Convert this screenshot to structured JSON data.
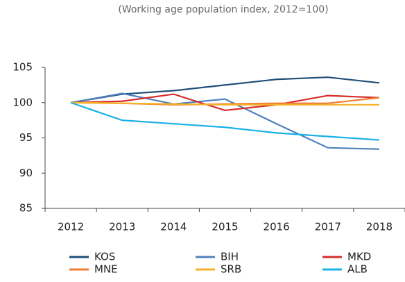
{
  "chart_data": {
    "type": "line",
    "subtitle": "(Working age population index, 2012=100)",
    "categories": [
      "2012",
      "2013",
      "2014",
      "2015",
      "2016",
      "2017",
      "2018"
    ],
    "series": [
      {
        "name": "KOS",
        "color": "#1f4e79",
        "values": [
          100,
          101.2,
          101.7,
          102.5,
          103.3,
          103.6,
          102.8
        ]
      },
      {
        "name": "BIH",
        "color": "#4f81bd",
        "values": [
          100,
          101.3,
          99.8,
          100.5,
          97,
          93.6,
          93.4
        ]
      },
      {
        "name": "MKD",
        "color": "#d62c2c",
        "values": [
          100,
          100.2,
          101.2,
          98.9,
          99.7,
          101,
          100.7
        ]
      },
      {
        "name": "MNE",
        "color": "#ef7d31",
        "values": [
          100,
          99.9,
          99.7,
          99.8,
          99.9,
          99.9,
          100.7
        ]
      },
      {
        "name": "SRB",
        "color": "#f5b025",
        "values": [
          100,
          99.9,
          99.8,
          99.7,
          99.7,
          99.7,
          99.7
        ]
      },
      {
        "name": "ALB",
        "color": "#1ab0e8",
        "values": [
          100,
          97.5,
          97,
          96.5,
          95.7,
          95.2,
          94.7
        ]
      }
    ],
    "ylim": [
      85,
      105
    ],
    "yticks": [
      85,
      90,
      95,
      100,
      105
    ],
    "grid": false
  }
}
